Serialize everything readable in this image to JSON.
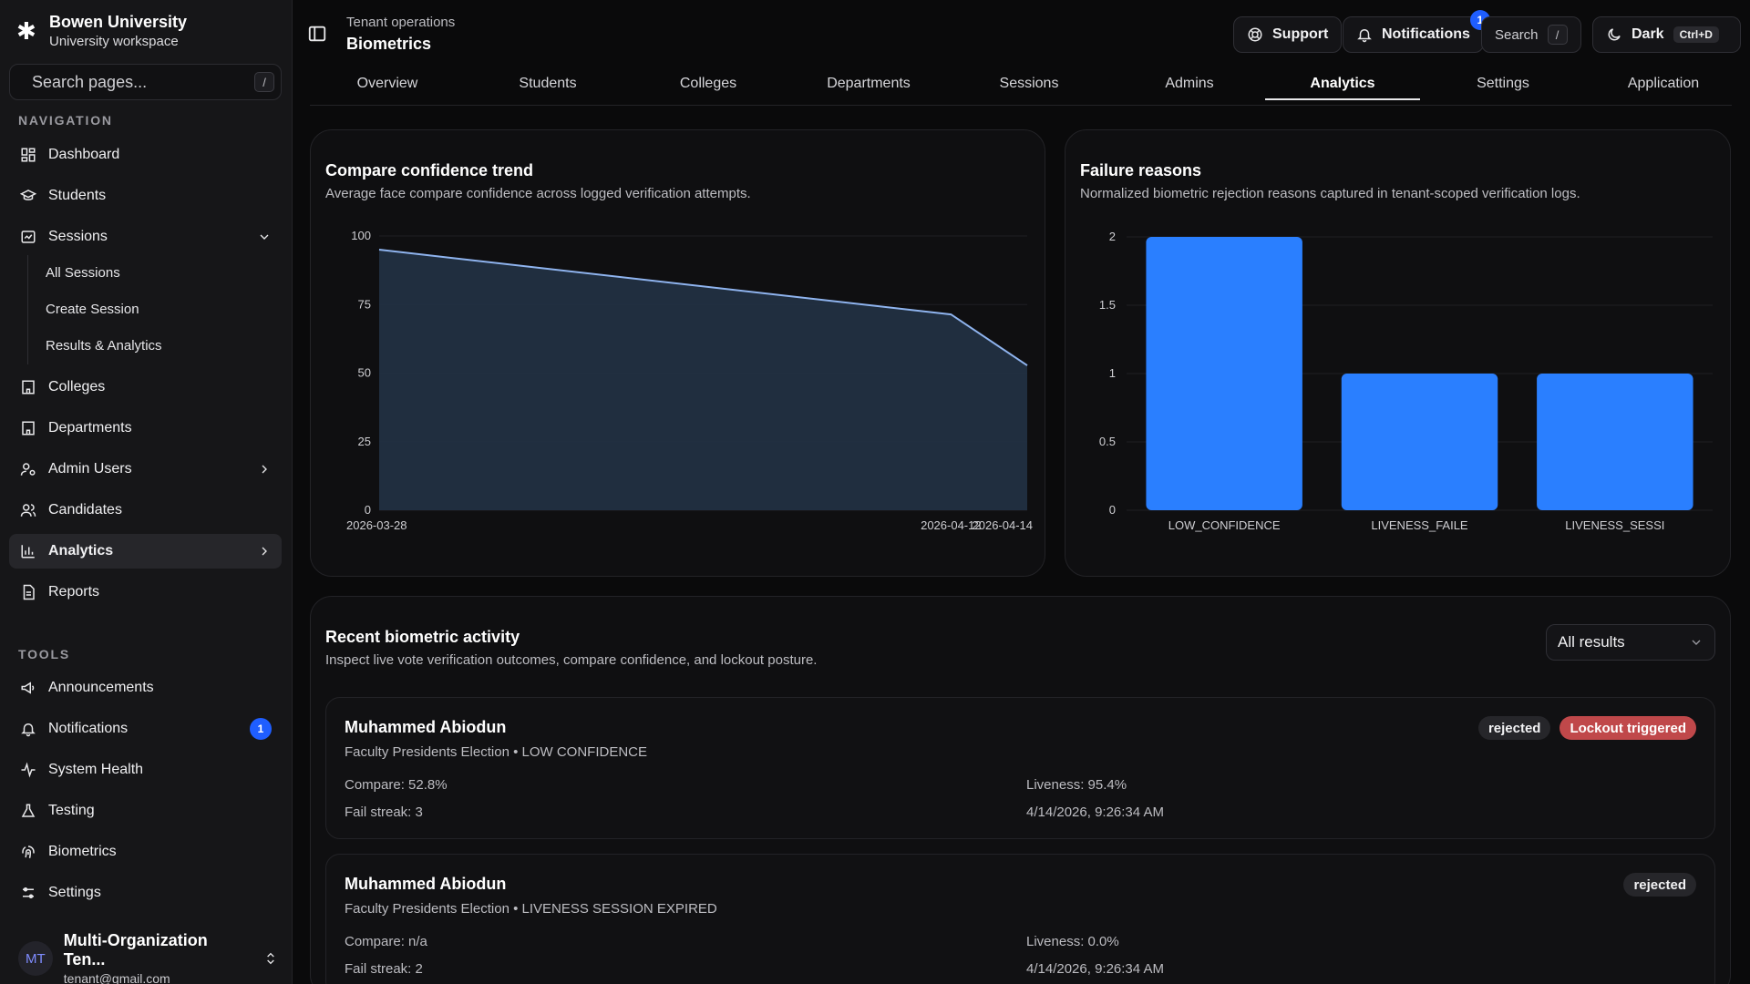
{
  "sidebar": {
    "brand_name": "Bowen University",
    "brand_sub": "University workspace",
    "search_placeholder": "Search pages...",
    "search_kbd": "/",
    "nav_label": "NAVIGATION",
    "nav": [
      {
        "label": "Dashboard",
        "icon": "dashboard-icon"
      },
      {
        "label": "Students",
        "icon": "graduation-cap-icon"
      },
      {
        "label": "Sessions",
        "icon": "calendar-icon"
      },
      {
        "label": "Colleges",
        "icon": "building-icon"
      },
      {
        "label": "Departments",
        "icon": "building-icon"
      },
      {
        "label": "Admin Users",
        "icon": "user-cog-icon"
      },
      {
        "label": "Candidates",
        "icon": "users-icon"
      },
      {
        "label": "Analytics",
        "icon": "bar-chart-icon"
      },
      {
        "label": "Reports",
        "icon": "file-icon"
      }
    ],
    "sessions_sub": [
      "All Sessions",
      "Create Session",
      "Results & Analytics"
    ],
    "tools_label": "TOOLS",
    "tools": [
      {
        "label": "Announcements",
        "icon": "megaphone-icon"
      },
      {
        "label": "Notifications",
        "icon": "bell-icon",
        "badge": "1"
      },
      {
        "label": "System Health",
        "icon": "activity-icon"
      },
      {
        "label": "Testing",
        "icon": "flask-icon"
      },
      {
        "label": "Biometrics",
        "icon": "fingerprint-icon"
      },
      {
        "label": "Settings",
        "icon": "sliders-icon"
      }
    ],
    "user": {
      "initials": "MT",
      "name": "Multi-Organization Ten...",
      "email": "tenant@gmail.com"
    }
  },
  "header": {
    "crumb_top": "Tenant operations",
    "title": "Biometrics",
    "support": "Support",
    "notifications": "Notifications",
    "notif_count": "1",
    "search": "Search",
    "search_kbd": "/",
    "theme": "Dark",
    "theme_kbd": "Ctrl+D"
  },
  "tabs": [
    "Overview",
    "Students",
    "Colleges",
    "Departments",
    "Sessions",
    "Admins",
    "Analytics",
    "Settings",
    "Application"
  ],
  "active_tab": "Analytics",
  "confidence_card": {
    "title": "Compare confidence trend",
    "subtitle": "Average face compare confidence across logged verification attempts."
  },
  "failure_card": {
    "title": "Failure reasons",
    "subtitle": "Normalized biometric rejection reasons captured in tenant-scoped verification logs."
  },
  "chart_data": [
    {
      "type": "area",
      "x": [
        "2026-03-28",
        "2026-04-12",
        "2026-04-14"
      ],
      "x_ticks": [
        "2026-03-28",
        "2026-04-12",
        "2026-04-14"
      ],
      "series": [
        {
          "values": [
            95,
            71.4,
            52.8
          ]
        }
      ],
      "y_ticks": [
        "0",
        "25",
        "50",
        "75",
        "100"
      ],
      "ylim": [
        0,
        100
      ],
      "grid": true,
      "color": "#8fb4ef"
    },
    {
      "type": "bar",
      "categories": [
        "LOW_CONFIDENCE",
        "LIVENESS_FAILE",
        "LIVENESS_SESSI"
      ],
      "values": [
        2,
        1,
        1
      ],
      "y_ticks": [
        "0",
        "0.5",
        "1",
        "1.5",
        "2"
      ],
      "ylim": [
        0,
        2
      ],
      "grid": true,
      "color": "#2a7fff"
    }
  ],
  "activity": {
    "title": "Recent biometric activity",
    "subtitle": "Inspect live vote verification outcomes, compare confidence, and lockout posture.",
    "filter": "All results",
    "items": [
      {
        "name": "Muhammed Abiodun",
        "meta": "Faculty Presidents Election • LOW CONFIDENCE",
        "compare": "Compare: 52.8%",
        "liveness": "Liveness: 95.4%",
        "streak": "Fail streak: 3",
        "time": "4/14/2026, 9:26:34 AM",
        "status": "rejected",
        "lockout": "Lockout triggered"
      },
      {
        "name": "Muhammed Abiodun",
        "meta": "Faculty Presidents Election • LIVENESS SESSION EXPIRED",
        "compare": "Compare: n/a",
        "liveness": "Liveness: 0.0%",
        "streak": "Fail streak: 2",
        "time": "4/14/2026, 9:26:34 AM",
        "status": "rejected"
      }
    ]
  }
}
